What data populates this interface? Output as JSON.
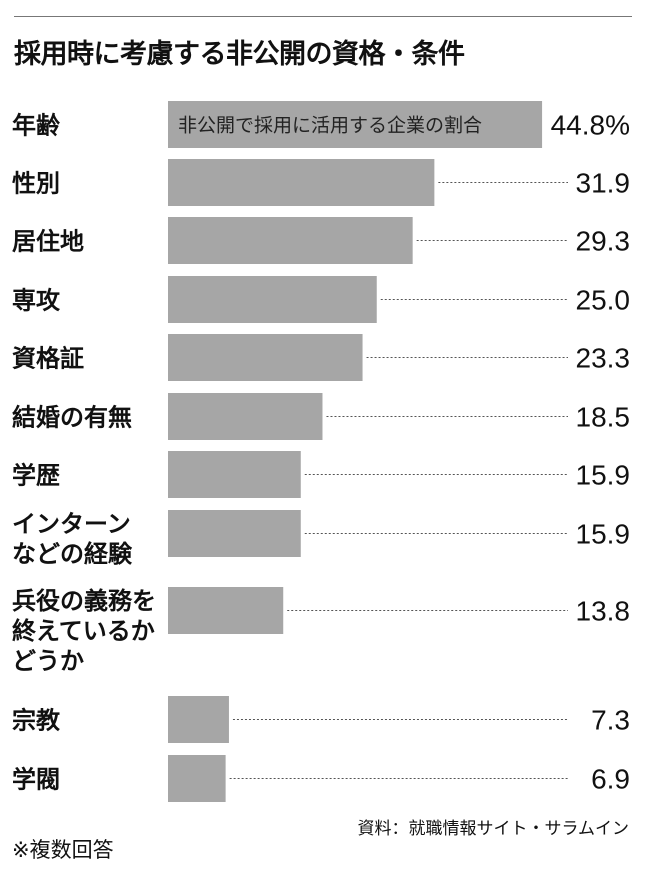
{
  "title": "採用時に考慮する非公開の資格・条件",
  "source": "資料：就職情報サイト・サラムイン",
  "note": "※複数回答",
  "chart_data": {
    "type": "bar",
    "orientation": "horizontal",
    "title": "採用時に考慮する非公開の資格・条件",
    "series_label": "非公開で採用に活用する企業の割合",
    "categories": [
      [
        "年齢"
      ],
      [
        "性別"
      ],
      [
        "居住地"
      ],
      [
        "専攻"
      ],
      [
        "資格証"
      ],
      [
        "結婚の有無"
      ],
      [
        "学歴"
      ],
      [
        "インターン",
        "などの経験"
      ],
      [
        "兵役の義務を",
        "終えているか",
        "どうか"
      ],
      [
        "宗教"
      ],
      [
        "学閥"
      ]
    ],
    "values": [
      44.8,
      31.9,
      29.3,
      25.0,
      23.3,
      18.5,
      15.9,
      15.9,
      13.8,
      7.3,
      6.9
    ],
    "value_labels": [
      "44.8%",
      "31.9",
      "29.3",
      "25.0",
      "23.3",
      "18.5",
      "15.9",
      "15.9",
      "13.8",
      "7.3",
      "6.9"
    ],
    "bar_color": "#a6a6a6",
    "leader_color": "#555555"
  }
}
